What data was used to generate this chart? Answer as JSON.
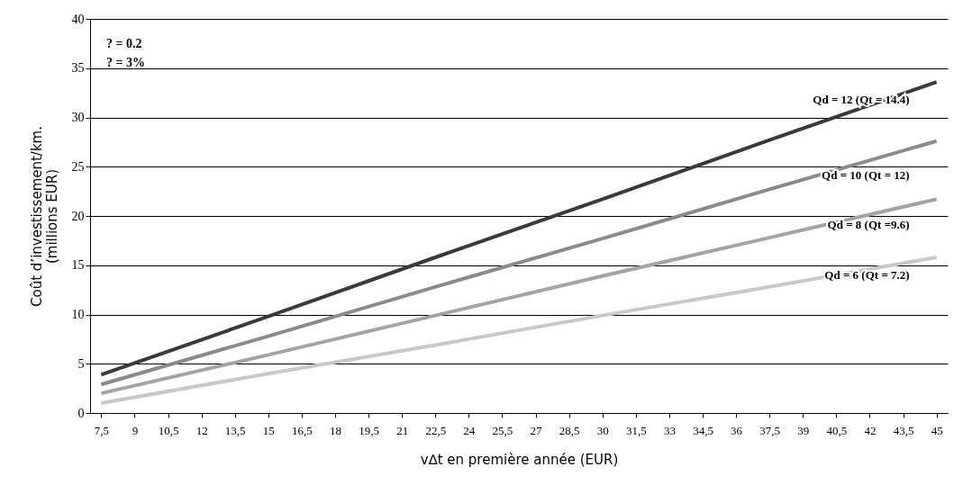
{
  "chart_data": {
    "type": "line",
    "xlabel": "v∆t en première année (EUR)",
    "ylabel": "Coût d’investissement/km.\n(millions EUR)",
    "annotations": [
      "? = 0.2",
      "? = 3%"
    ],
    "x": [
      7.5,
      15,
      22.5,
      30,
      37.5,
      45
    ],
    "series": [
      {
        "name": "Qd = 12 (Qt = 14.4)",
        "color": "#3a3a3a",
        "values": [
          3.9,
          9.8,
          15.8,
          21.7,
          27.7,
          33.6
        ]
      },
      {
        "name": "Qd = 10 (Qt = 12)",
        "color": "#8a8a8a",
        "values": [
          2.9,
          7.8,
          12.8,
          17.7,
          22.7,
          27.6
        ]
      },
      {
        "name": "Qd = 8 (Qt =9.6)",
        "color": "#a3a3a3",
        "values": [
          2.0,
          5.9,
          9.9,
          13.9,
          17.8,
          21.7
        ]
      },
      {
        "name": "Qd = 6 (Qt = 7.2)",
        "color": "#c8c8c8",
        "values": [
          1.0,
          4.0,
          6.9,
          9.9,
          12.8,
          15.8
        ]
      }
    ],
    "xlim": [
      7,
      45.5
    ],
    "xticks": [
      {
        "value": 7.5,
        "label": "7,5"
      },
      9,
      {
        "value": 10.5,
        "label": "10,5"
      },
      12,
      {
        "value": 13.5,
        "label": "13,5"
      },
      15,
      {
        "value": 16.5,
        "label": "16,5"
      },
      18,
      {
        "value": 19.5,
        "label": "19,5"
      },
      21,
      {
        "value": 22.5,
        "label": "22,5"
      },
      24,
      {
        "value": 25.5,
        "label": "25,5"
      },
      27,
      {
        "value": 28.5,
        "label": "28,5"
      },
      30,
      {
        "value": 31.5,
        "label": "31,5"
      },
      33,
      {
        "value": 34.5,
        "label": "34,5"
      },
      36,
      {
        "value": 37.5,
        "label": "37,5"
      },
      39,
      {
        "value": 40.5,
        "label": "40,5"
      },
      42,
      {
        "value": 43.5,
        "label": "43,5"
      },
      45
    ],
    "ylim": [
      0,
      40
    ],
    "yticks": [
      0,
      5,
      10,
      15,
      20,
      25,
      30,
      35,
      40
    ],
    "grid": "y",
    "legend": false,
    "marker": "none",
    "line_style": "solid"
  }
}
